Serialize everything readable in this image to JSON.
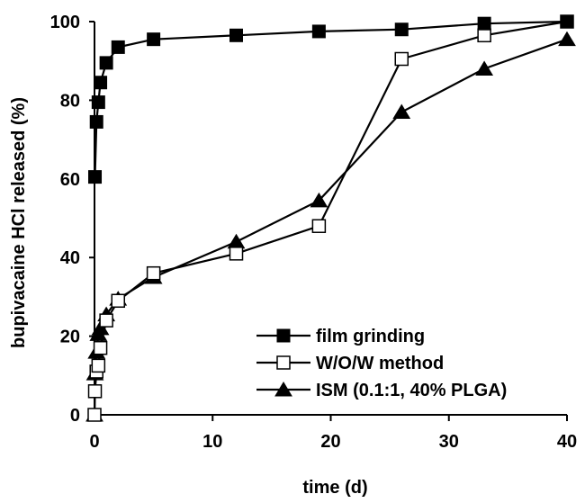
{
  "chart_data": {
    "type": "line",
    "title": "",
    "xlabel": "time (d)",
    "ylabel": "bupivacaine HCl released (%)",
    "xlim": [
      0,
      40
    ],
    "ylim": [
      0,
      100
    ],
    "xticks": [
      0,
      10,
      20,
      30,
      40
    ],
    "yticks": [
      0,
      20,
      40,
      60,
      80,
      100
    ],
    "grid": false,
    "legend_position": "bottom-right",
    "series": [
      {
        "name": "film grinding",
        "marker": "filled-square",
        "color": "#000000",
        "x": [
          0.04,
          0.17,
          0.33,
          0.5,
          1,
          2,
          5,
          12,
          19,
          26,
          33,
          40
        ],
        "y": [
          60.5,
          74.5,
          79.5,
          84.5,
          89.5,
          93.5,
          95.5,
          96.5,
          97.5,
          98,
          99.5,
          100
        ]
      },
      {
        "name": "W/O/W method",
        "marker": "open-square",
        "color": "#000000",
        "x": [
          0,
          0.04,
          0.17,
          0.33,
          0.5,
          1,
          2,
          5,
          12,
          19,
          26,
          33,
          40
        ],
        "y": [
          0,
          6,
          11,
          12.5,
          17,
          24,
          29,
          36,
          41,
          48,
          90.5,
          96.5,
          100
        ]
      },
      {
        "name": "ISM (0.1:1, 40% PLGA)",
        "marker": "filled-triangle",
        "color": "#000000",
        "x": [
          0,
          0.04,
          0.17,
          0.33,
          0.5,
          1,
          2,
          5,
          12,
          19,
          26,
          33,
          40
        ],
        "y": [
          0,
          10.5,
          16,
          20.5,
          22,
          25.5,
          29.5,
          35,
          44,
          54.5,
          77,
          88,
          95.5
        ]
      }
    ]
  }
}
